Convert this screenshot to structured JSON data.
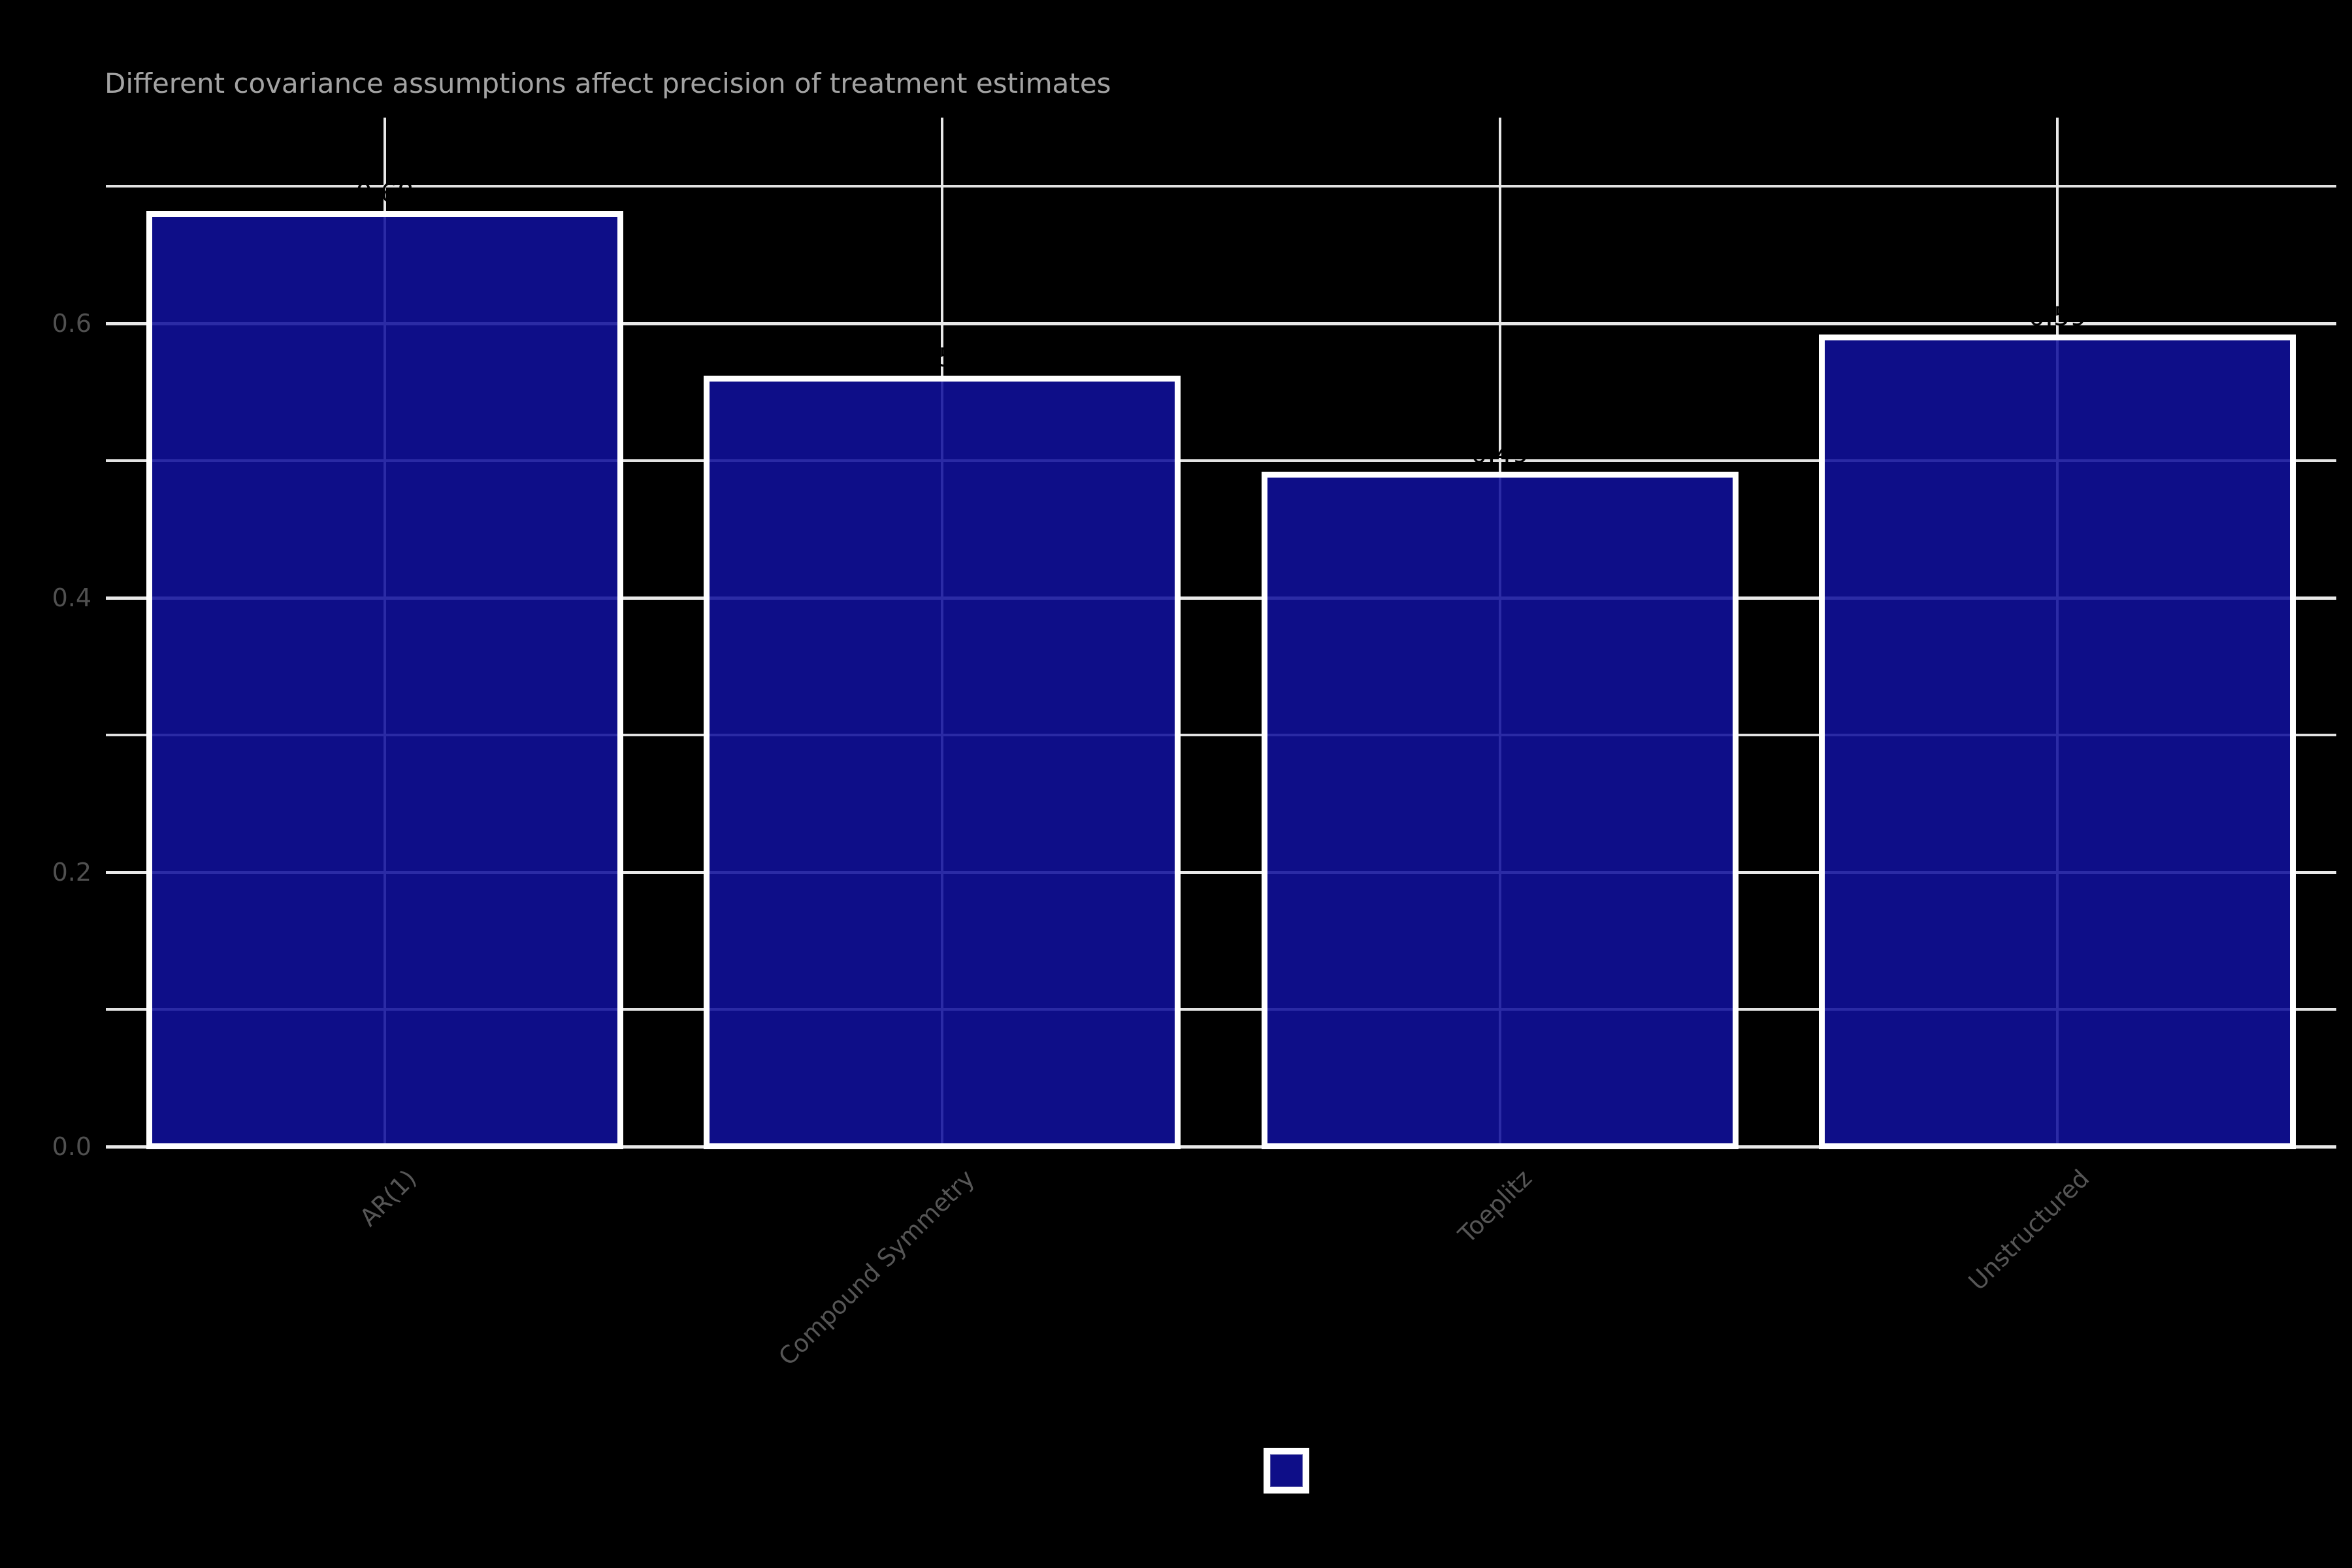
{
  "title": "Different covariance assumptions affect precision of treatment estimates",
  "colors": {
    "background": "#000000",
    "bar_fill": "#0e0e88",
    "bar_border": "#ffffff",
    "gridline": "#e8e8e8",
    "title_text": "#a3a3a3",
    "axis_text": "#565656",
    "bar_label_text": "#000000"
  },
  "legend": {
    "swatch_color": "#0e0e88",
    "position": "bottom-center"
  },
  "chart_data": {
    "type": "bar",
    "title": "Different covariance assumptions affect precision of treatment estimates",
    "categories": [
      "AR(1)",
      "Compound Symmetry",
      "Toeplitz",
      "Unstructured"
    ],
    "values": [
      0.68,
      0.56,
      0.49,
      0.59
    ],
    "bar_labels": [
      "0.68",
      "0.56",
      "0.49",
      "0.59"
    ],
    "xlabel": "",
    "ylabel": "",
    "ylim": [
      0,
      0.75
    ],
    "yticks": [
      0.0,
      0.2,
      0.4,
      0.6
    ],
    "ytick_labels": [
      "0.0",
      "0.2",
      "0.4",
      "0.6"
    ],
    "minor_gridlines": [
      0.1,
      0.3,
      0.5,
      0.7
    ],
    "grid": "on",
    "x_label_rotation_deg": 45,
    "legend_position": "bottom"
  }
}
